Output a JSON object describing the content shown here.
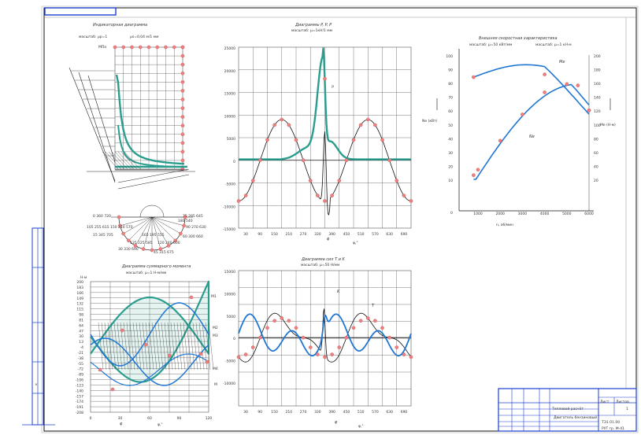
{
  "charts": {
    "indicator": {
      "title": "Индикаторная диаграмма",
      "scale_left": "масштаб: μp=1",
      "scale_right": "μs=0,04 м/1 мм",
      "y_unit": "МПа",
      "bottom_labels": [
        "0 360 720",
        "15 345 705",
        "30 330 690",
        "45 315 675",
        "60 300 660",
        "75 285 645",
        "90 270 630",
        "105 255 615",
        "120 240 600",
        "135 225 585",
        "150 210 570",
        "165 195 555",
        "180 540"
      ]
    },
    "forces": {
      "title": "Диаграммы P, P, P",
      "scale": "масштаб: μ=1кН/1 мм",
      "y_ticks": [
        "25000",
        "20000",
        "15000",
        "10000",
        "5000",
        "0",
        "-5000",
        "-10000",
        "-15000"
      ],
      "x_ticks": [
        "30",
        "90",
        "150",
        "210",
        "270",
        "330",
        "390",
        "450",
        "510",
        "570",
        "630",
        "690"
      ],
      "x_unit": "φ,°",
      "x_symbol": "φ"
    },
    "speed": {
      "title": "Внешняя скоростная характеристика",
      "scale_left": "масштаб: μ=50 кВт/мм",
      "scale_right": "масштаб: μ=1 кН·м",
      "left_ticks": [
        "100",
        "90",
        "80",
        "70",
        "60",
        "50",
        "40",
        "30",
        "20",
        "10"
      ],
      "right_ticks": [
        "200",
        "180",
        "160",
        "140",
        "120",
        "100",
        "80",
        "60",
        "40",
        "20"
      ],
      "x_ticks": [
        "1000",
        "2000",
        "3000",
        "4000",
        "5000",
        "6000"
      ],
      "x_zero": "0",
      "x_unit": "n, об/мин",
      "left_unit": "Ne (кВт)",
      "right_unit": "Me (Н·м)",
      "curve_label_me": "Me",
      "curve_label_ne": "Ne"
    },
    "torque": {
      "title": "Диаграмма суммарного момента",
      "scale": "масштаб: μ=1 Н·м/мм",
      "y_unit": "Н·м",
      "x_ticks": [
        "0",
        "30",
        "60",
        "90",
        "120"
      ],
      "x_unit": "φ,°",
      "x_symbol": "φ",
      "labels": [
        "M1",
        "M2",
        "M3",
        "M4",
        "M"
      ]
    },
    "tangential": {
      "title": "Диаграмма сил T и K",
      "scale": "масштаб: μ=50 Н/мм",
      "y_ticks": [
        "15000",
        "10000",
        "5000",
        "0",
        "-5000",
        "-10000"
      ],
      "x_ticks": [
        "30",
        "90",
        "150",
        "210",
        "270",
        "330",
        "390",
        "450",
        "510",
        "570",
        "630",
        "690"
      ],
      "x_unit": "φ,°",
      "x_symbol": "φ",
      "label_T": "T",
      "label_K": "K"
    }
  },
  "stamp": {
    "title": "Двигатель бензиновый",
    "subtitle": "Тепловой расчёт",
    "doc_number": "ТЭ1.01.00",
    "org": "РУТ гр. М-41",
    "sheet": "Лист",
    "sheets": "Листов",
    "sheet_count": "1"
  },
  "colors": {
    "teal": "#2a9d8f",
    "blue": "#1f77d4",
    "marker": "#f08080",
    "ink": "#111111",
    "grid": "#555555"
  }
}
